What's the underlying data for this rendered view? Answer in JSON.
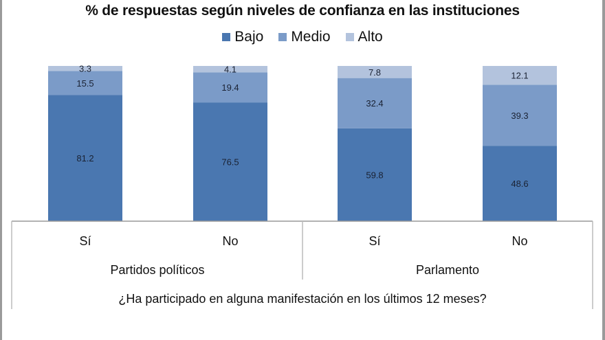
{
  "chart_data": {
    "type": "bar",
    "stacked": true,
    "title": "% de respuestas según niveles de confianza en las instituciones",
    "xlabel": "¿Ha participado en alguna manifestación en los últimos 12 meses?",
    "ylabel": "",
    "ylim": [
      0,
      100
    ],
    "legend_position": "top",
    "grid": false,
    "groups": [
      {
        "label": "Partidos políticos",
        "categories": [
          "Sí",
          "No"
        ]
      },
      {
        "label": "Parlamento",
        "categories": [
          "Sí",
          "No"
        ]
      }
    ],
    "categories": [
      "Sí",
      "No",
      "Sí",
      "No"
    ],
    "series": [
      {
        "name": "Bajo",
        "color": "#4a77b0",
        "values": [
          81.2,
          76.5,
          59.8,
          48.6
        ]
      },
      {
        "name": "Medio",
        "color": "#7b9bc8",
        "values": [
          15.5,
          19.4,
          32.4,
          39.3
        ]
      },
      {
        "name": "Alto",
        "color": "#b3c3dd",
        "values": [
          3.3,
          4.1,
          7.8,
          12.1
        ]
      }
    ]
  }
}
